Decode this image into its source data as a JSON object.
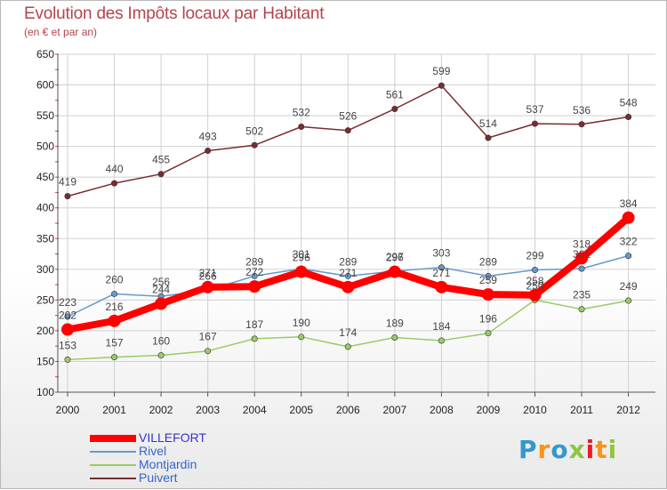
{
  "chart_data": {
    "type": "line",
    "title": "Evolution des Impôts locaux par Habitant",
    "subtitle": "(en € et par an)",
    "xlabel": "",
    "ylabel": "",
    "categories": [
      "2000",
      "2001",
      "2002",
      "2003",
      "2004",
      "2005",
      "2006",
      "2007",
      "2008",
      "2009",
      "2010",
      "2011",
      "2012"
    ],
    "ylim": [
      100,
      650
    ],
    "yticks": [
      "100",
      "150",
      "200",
      "250",
      "300",
      "350",
      "400",
      "450",
      "500",
      "550",
      "600",
      "650"
    ],
    "grid": true,
    "legend_position": "bottom-left",
    "series": [
      {
        "name": "VILLEFORT",
        "color": "#ff0000",
        "values": [
          202,
          216,
          244,
          271,
          272,
          296,
          271,
          296,
          271,
          259,
          258,
          318,
          384
        ]
      },
      {
        "name": "Rivel",
        "color": "#6699cc",
        "values": [
          223,
          260,
          256,
          266,
          289,
          301,
          289,
          297,
          303,
          289,
          299,
          301,
          322
        ]
      },
      {
        "name": "Montjardin",
        "color": "#99cc66",
        "values": [
          153,
          157,
          160,
          167,
          187,
          190,
          174,
          189,
          184,
          196,
          250,
          235,
          249
        ]
      },
      {
        "name": "Puivert",
        "color": "#7a2d2d",
        "values": [
          419,
          440,
          455,
          493,
          502,
          532,
          526,
          561,
          599,
          514,
          537,
          536,
          548
        ]
      }
    ]
  },
  "logo": {
    "letters": [
      "P",
      "r",
      "o",
      "x",
      "i",
      "t",
      "i"
    ],
    "colors": [
      "#3399cc",
      "#f7941d",
      "#3399cc",
      "#8dc63f",
      "#ed1c24",
      "#f7941d",
      "#8dc63f"
    ]
  }
}
